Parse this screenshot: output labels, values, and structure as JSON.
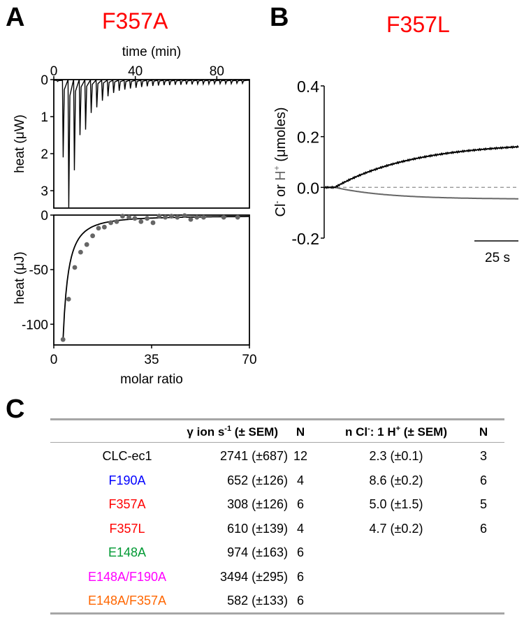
{
  "panels": {
    "a": {
      "letter": "A",
      "title": "F357A",
      "title_color": "#ff0000"
    },
    "b": {
      "letter": "B",
      "title": "F357L",
      "title_color": "#ff0000"
    },
    "c": {
      "letter": "C"
    }
  },
  "chart_data": [
    {
      "id": "itc-thermogram",
      "type": "line",
      "title": "F357A",
      "xlabel": "time (min)",
      "ylabel": "heat (μW)",
      "xlim": [
        0,
        96
      ],
      "ylim": [
        0,
        3.47
      ],
      "y_inverted": true,
      "xticks": [
        0,
        40,
        80
      ],
      "yticks": [
        0,
        1,
        2,
        3
      ],
      "x_axis_position": "top",
      "injection_interval_min": 2.75,
      "injection_peaks": [
        0.05,
        2.1,
        3.45,
        2.45,
        1.5,
        1.35,
        0.9,
        0.75,
        0.57,
        0.45,
        0.36,
        0.3,
        0.27,
        0.24,
        0.22,
        0.2,
        0.18,
        0.17,
        0.16,
        0.15,
        0.15,
        0.14,
        0.14,
        0.13,
        0.13,
        0.12,
        0.12,
        0.12,
        0.11,
        0.11,
        0.11,
        0.11,
        0.1,
        0.1
      ],
      "grid": false
    },
    {
      "id": "itc-binding-isotherm",
      "type": "scatter",
      "xlabel": "molar ratio",
      "ylabel": "heat (μJ)",
      "xlim": [
        0,
        70
      ],
      "ylim": [
        -119,
        0
      ],
      "xticks": [
        0,
        35,
        70
      ],
      "yticks": [
        0,
        -50,
        -100
      ],
      "points": {
        "x": [
          3.3,
          5.3,
          7.5,
          9.6,
          11.8,
          13.9,
          16.0,
          18.1,
          20.4,
          22.5,
          24.6,
          26.9,
          29.0,
          31.2,
          33.4,
          35.5,
          37.7,
          39.9,
          42.1,
          44.2,
          46.8,
          49.0,
          51.2,
          53.6,
          60.8,
          65.8
        ],
        "y": [
          -114,
          -77,
          -48,
          -34,
          -27,
          -19,
          -12,
          -11,
          -7,
          -6,
          -1,
          -2,
          -3,
          -6,
          -3,
          -7,
          -1,
          -2,
          -1,
          -2,
          -0.5,
          -4,
          -2,
          -2,
          -2,
          -2
        ]
      },
      "point_color": "#666666",
      "fit_curve": "hyperbolic decay toward 0",
      "grid": false
    },
    {
      "id": "flux-trace",
      "type": "line",
      "title": "F357L",
      "ylabel_parts": [
        "Cl",
        "-",
        " or ",
        "H",
        "+",
        " (μmoles)"
      ],
      "ylim": [
        -0.2,
        0.4
      ],
      "yticks": [
        0.4,
        0.2,
        0.0,
        -0.2
      ],
      "ytick_labels": [
        "0.4",
        "0.2",
        "0.0",
        "-0.2"
      ],
      "scale_bar": {
        "label": "25 s",
        "seconds": 25
      },
      "duration_s": 110,
      "onset_s": 6,
      "series": [
        {
          "name": "Cl-",
          "color": "#000000",
          "final_value": 0.16,
          "tau_s": 45,
          "plateau": 0.2
        },
        {
          "name": "H+",
          "color": "#666666",
          "final_value": -0.045,
          "tau_s": 30,
          "plateau": -0.047
        }
      ],
      "baseline": {
        "value": 0.0,
        "style": "dashed",
        "color": "#999999"
      }
    }
  ],
  "table": {
    "headers": {
      "rate": {
        "prefix": "γ ion s",
        "sup": "-1",
        "suffix": " (± SEM)"
      },
      "n1": "N",
      "ratio": {
        "p1": "n Cl",
        "sup1": "-",
        "p2": ": 1 H",
        "sup2": "+",
        "p3": " (± SEM)"
      },
      "n2": "N"
    },
    "rows": [
      {
        "name": "CLC-ec1",
        "color": "#000000",
        "rate": "2741 (±687)",
        "n1": "12",
        "ratio": "2.3 (±0.1)",
        "n2": "3"
      },
      {
        "name": "F190A",
        "color": "#0000ff",
        "rate": "652 (±126)",
        "n1": "4",
        "ratio": "8.6 (±0.2)",
        "n2": "6"
      },
      {
        "name": "F357A",
        "color": "#ff0000",
        "rate": "308 (±126)",
        "n1": "6",
        "ratio": "5.0 (±1.5)",
        "n2": "5"
      },
      {
        "name": "F357L",
        "color": "#ff0000",
        "rate": "610 (±139)",
        "n1": "4",
        "ratio": "4.7 (±0.2)",
        "n2": "6"
      },
      {
        "name": "E148A",
        "color": "#009933",
        "rate": "974 (±163)",
        "n1": "6",
        "ratio": "",
        "n2": ""
      },
      {
        "name": "E148A/F190A",
        "color": "#ff00ff",
        "rate": "3494 (±295)",
        "n1": "6",
        "ratio": "",
        "n2": ""
      },
      {
        "name": "E148A/F357A",
        "color": "#ff6600",
        "rate": "582 (±133)",
        "n1": "6",
        "ratio": "",
        "n2": ""
      }
    ]
  }
}
